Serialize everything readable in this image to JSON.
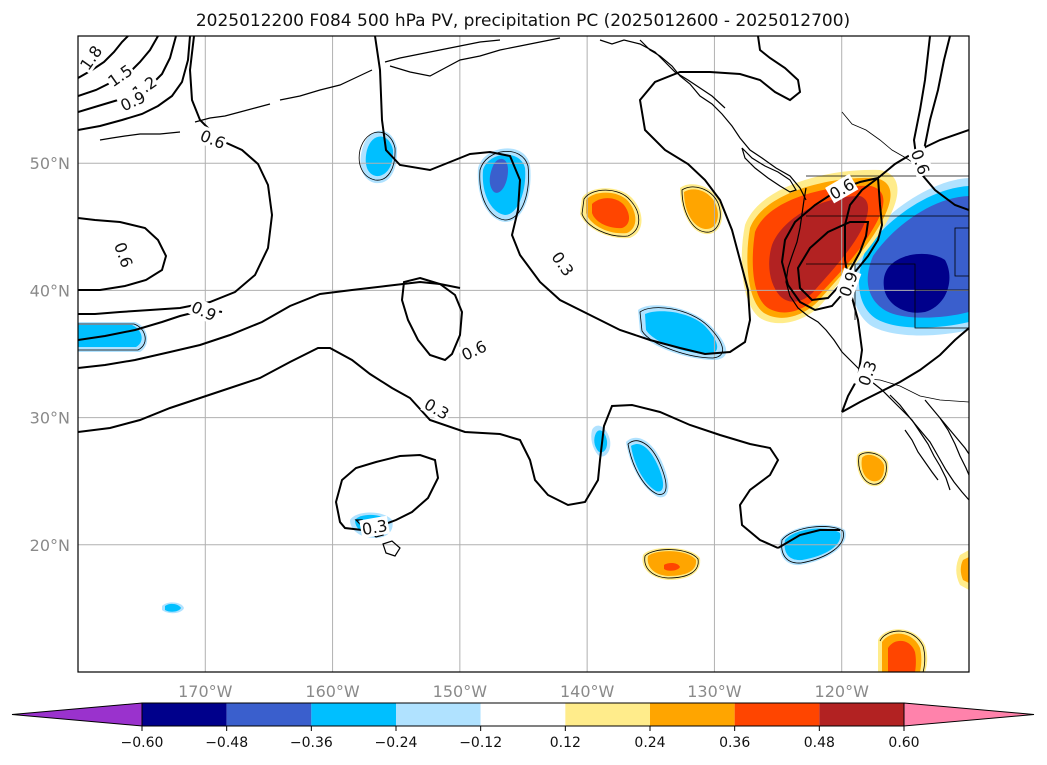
{
  "title": "2025012200 F084 500 hPa PV, precipitation PC (2025012600 - 2025012700)",
  "map": {
    "lon_range": [
      -180,
      -110
    ],
    "lat_range": [
      10,
      60
    ],
    "lon_ticks": [
      {
        "value": -170,
        "label": "170°W"
      },
      {
        "value": -160,
        "label": "160°W"
      },
      {
        "value": -150,
        "label": "150°W"
      },
      {
        "value": -140,
        "label": "140°W"
      },
      {
        "value": -130,
        "label": "130°W"
      },
      {
        "value": -120,
        "label": "120°W"
      }
    ],
    "lat_ticks": [
      {
        "value": 20,
        "label": "20°N"
      },
      {
        "value": 30,
        "label": "30°N"
      },
      {
        "value": 40,
        "label": "40°N"
      },
      {
        "value": 50,
        "label": "50°N"
      }
    ],
    "grid": true
  },
  "contour_labels": [
    {
      "text": "1.8",
      "lon": -179,
      "lat": 58.3,
      "rot": -55
    },
    {
      "text": "1.5",
      "lon": -176.7,
      "lat": 56.9,
      "rot": -35
    },
    {
      "text": "1.2",
      "lon": -174.8,
      "lat": 56.0,
      "rot": -35
    },
    {
      "text": "0.9",
      "lon": -175.7,
      "lat": 54.9,
      "rot": -25
    },
    {
      "text": "0.6",
      "lon": -169.4,
      "lat": 51.9,
      "rot": 22
    },
    {
      "text": "0.6",
      "lon": -176.4,
      "lat": 42.8,
      "rot": 70
    },
    {
      "text": "0.9",
      "lon": -170.1,
      "lat": 38.4,
      "rot": 25
    },
    {
      "text": "0.6",
      "lon": -148.9,
      "lat": 35.3,
      "rot": -25
    },
    {
      "text": "0.3",
      "lon": -151.8,
      "lat": 30.7,
      "rot": 30
    },
    {
      "text": "0.3",
      "lon": -141.9,
      "lat": 42.1,
      "rot": 55
    },
    {
      "text": "0.3",
      "lon": -156.7,
      "lat": 21.4,
      "rot": -10
    },
    {
      "text": "0.6",
      "lon": -113.8,
      "lat": 50.1,
      "rot": 70
    },
    {
      "text": "0.6",
      "lon": -120.0,
      "lat": 48.0,
      "rot": -30
    },
    {
      "text": "0.9",
      "lon": -119.5,
      "lat": 40.5,
      "rot": -70
    },
    {
      "text": "0.3",
      "lon": -118.0,
      "lat": 33.5,
      "rot": -70
    }
  ],
  "colorbar": {
    "boundaries": [
      -0.6,
      -0.48,
      -0.36,
      -0.24,
      -0.12,
      0.12,
      0.24,
      0.36,
      0.48,
      0.6
    ],
    "labels": [
      "−0.60",
      "−0.48",
      "−0.36",
      "−0.24",
      "−0.12",
      "0.12",
      "0.24",
      "0.36",
      "0.48",
      "0.60"
    ],
    "colors": [
      "#9a32cd",
      "#00008b",
      "#3a5fcd",
      "#00bfff",
      "#b0e2ff",
      "#ffffff",
      "#ffec8b",
      "#ffa500",
      "#ff4500",
      "#b22222",
      "#ff82ab"
    ],
    "extend": "both"
  },
  "colors": {
    "title": "#111111",
    "tick_label": "#8a8a8a",
    "grid": "#b0b0b0",
    "contour": "#000000"
  }
}
